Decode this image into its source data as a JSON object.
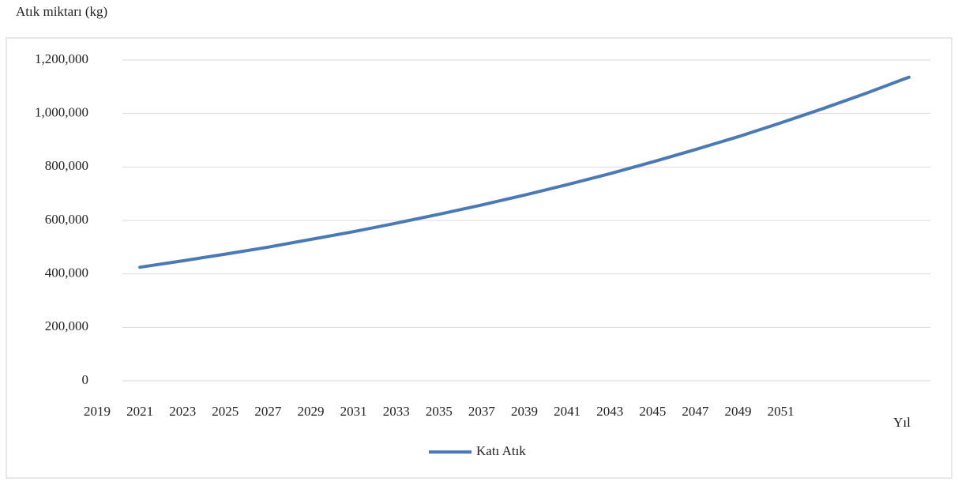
{
  "chart_data": {
    "type": "line",
    "y_axis_title": "Atık miktarı (kg)",
    "x_axis_title": "Yıl",
    "x": [
      2021,
      2023,
      2025,
      2027,
      2029,
      2031,
      2033,
      2035,
      2037,
      2039,
      2041,
      2043,
      2045,
      2047,
      2049,
      2051,
      2053,
      2055,
      2057
    ],
    "series": [
      {
        "name": "Katı Atık",
        "color": "#4a7ab5",
        "values": [
          425000,
          449000,
          474000,
          500000,
          529000,
          558000,
          590000,
          623000,
          658000,
          695000,
          734000,
          775000,
          819000,
          865000,
          913000,
          965000,
          1019000,
          1076000,
          1136000
        ]
      }
    ],
    "xlim": [
      2019,
      2058
    ],
    "xticks": [
      2019,
      2021,
      2023,
      2025,
      2027,
      2029,
      2031,
      2033,
      2035,
      2037,
      2039,
      2041,
      2043,
      2045,
      2047,
      2049,
      2051
    ],
    "ylim": [
      0,
      1200000
    ],
    "yticks": [
      0,
      {
        "value": 200000,
        "label": "200,000"
      },
      {
        "value": 400000,
        "label": "400,000"
      },
      {
        "value": 600000,
        "label": "600,000"
      },
      {
        "value": 800000,
        "label": "800,000"
      },
      {
        "value": 1000000,
        "label": "1,000,000"
      },
      {
        "value": 1200000,
        "label": "1,200,000"
      }
    ],
    "grid": true,
    "legend": "bottom"
  }
}
